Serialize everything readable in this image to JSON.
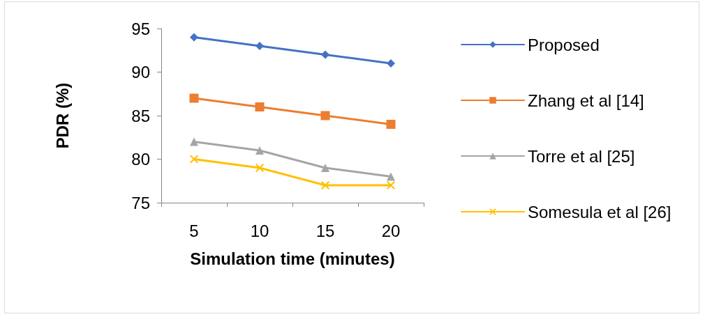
{
  "chart_data": {
    "type": "line",
    "xlabel": "Simulation time (minutes)",
    "ylabel": "PDR (%)",
    "categories": [
      "5",
      "10",
      "15",
      "20"
    ],
    "series": [
      {
        "name": "Proposed",
        "color": "#4472c4",
        "marker": "diamond",
        "values": [
          94,
          93,
          92,
          91
        ]
      },
      {
        "name": "Zhang et al [14]",
        "color": "#ed7d31",
        "marker": "square",
        "values": [
          87,
          86,
          85,
          84
        ]
      },
      {
        "name": "Torre et al [25]",
        "color": "#a5a5a5",
        "marker": "triangle",
        "values": [
          82,
          81,
          79,
          78
        ]
      },
      {
        "name": "Somesula et al [26]",
        "color": "#ffc000",
        "marker": "cross",
        "values": [
          80,
          79,
          77,
          77
        ]
      }
    ],
    "ylim": [
      75,
      95
    ],
    "yticks": [
      75,
      80,
      85,
      90,
      95
    ],
    "grid": false,
    "legend": "right",
    "line_style": "solid"
  }
}
